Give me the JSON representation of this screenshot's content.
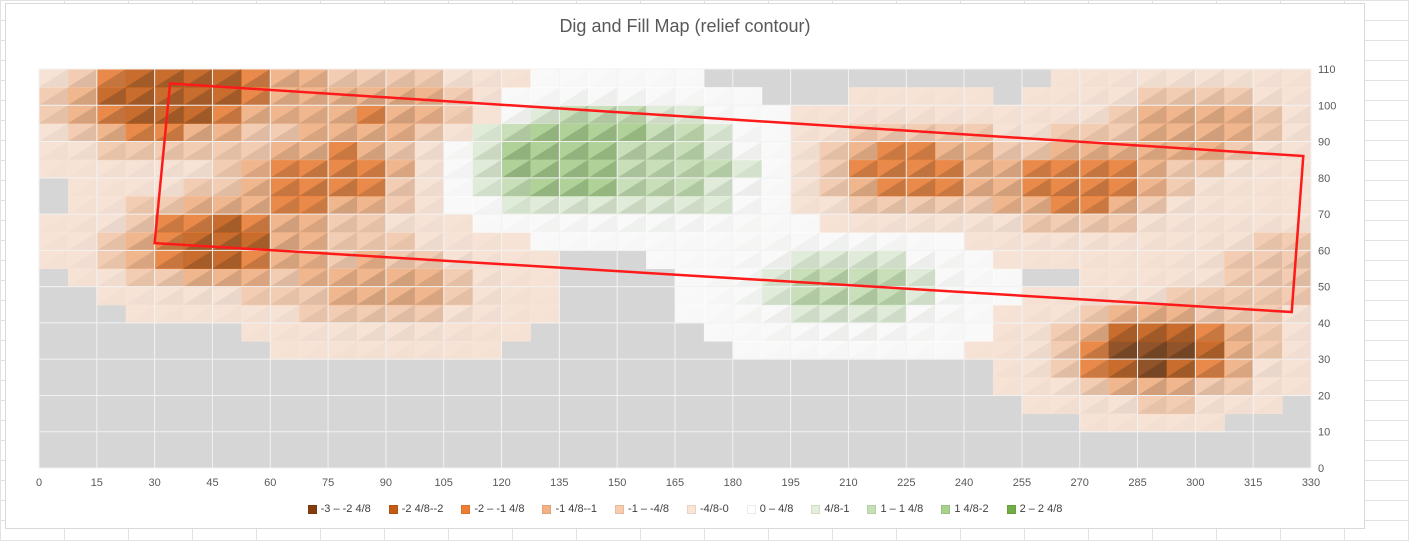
{
  "chart_data": {
    "type": "surface-contour",
    "title": "Dig and Fill Map (relief contour)",
    "x_axis": {
      "range": [
        0,
        330
      ],
      "ticks": [
        "0",
        "15",
        "30",
        "45",
        "60",
        "75",
        "90",
        "105",
        "120",
        "135",
        "150",
        "165",
        "180",
        "195",
        "210",
        "225",
        "240",
        "255",
        "270",
        "285",
        "300",
        "315",
        "330"
      ]
    },
    "y_axis": {
      "range": [
        0,
        110
      ],
      "position": "right",
      "ticks": [
        "0",
        "10",
        "20",
        "30",
        "40",
        "50",
        "60",
        "70",
        "80",
        "90",
        "100",
        "110"
      ]
    },
    "grid": true,
    "legend_position": "bottom",
    "legend": [
      {
        "label": "-3  – -2 4/8",
        "color": "#843c0c"
      },
      {
        "label": "-2 4/8--2",
        "color": "#c55a11"
      },
      {
        "label": "-2  – -1 4/8",
        "color": "#ed7d31"
      },
      {
        "label": "-1 4/8--1",
        "color": "#f4b183"
      },
      {
        "label": "-1  –  -4/8",
        "color": "#f8cbad"
      },
      {
        "label": "-4/8-0",
        "color": "#fbe5d6"
      },
      {
        "label": "0  – 4/8",
        "color": "#ffffff"
      },
      {
        "label": "4/8-1",
        "color": "#e2f0d9"
      },
      {
        "label": "1  – 1 4/8",
        "color": "#c5e0b4"
      },
      {
        "label": "1 4/8-2",
        "color": "#a9d18e"
      },
      {
        "label": "2  – 2 4/8",
        "color": "#70ad47"
      }
    ],
    "features": [
      {
        "x": 30,
        "y": 100,
        "value": -2.5
      },
      {
        "x": 45,
        "y": 110,
        "value": -2
      },
      {
        "x": 45,
        "y": 62,
        "value": -2.5
      },
      {
        "x": 75,
        "y": 80,
        "value": -2
      },
      {
        "x": 90,
        "y": 100,
        "value": -1.5
      },
      {
        "x": 90,
        "y": 50,
        "value": -1.5
      },
      {
        "x": 135,
        "y": 85,
        "value": 2
      },
      {
        "x": 150,
        "y": 88,
        "value": 1.5
      },
      {
        "x": 165,
        "y": 80,
        "value": 1
      },
      {
        "x": 210,
        "y": 50,
        "value": 1.5
      },
      {
        "x": 225,
        "y": 82,
        "value": -2
      },
      {
        "x": 270,
        "y": 78,
        "value": -2
      },
      {
        "x": 290,
        "y": 32,
        "value": -3
      },
      {
        "x": 300,
        "y": 95,
        "value": -1.5
      },
      {
        "x": 325,
        "y": 55,
        "value": -1
      }
    ],
    "highlight_quad": [
      [
        34,
        106
      ],
      [
        30,
        62
      ],
      [
        325,
        43
      ],
      [
        328,
        86
      ]
    ]
  }
}
